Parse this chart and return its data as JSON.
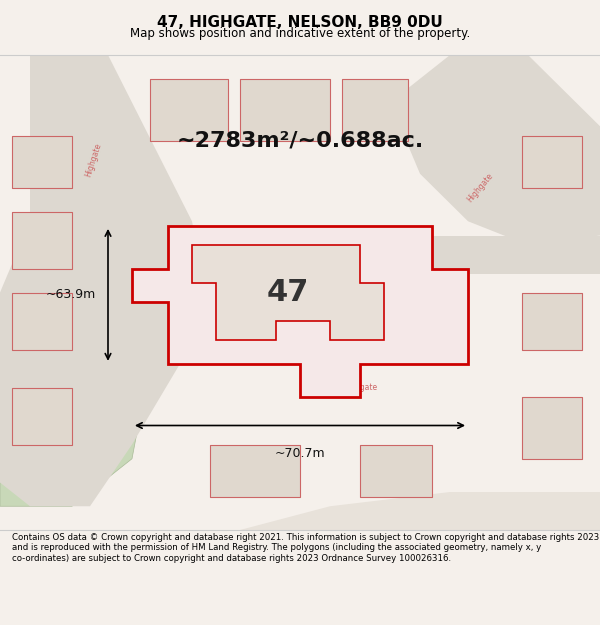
{
  "title": "47, HIGHGATE, NELSON, BB9 0DU",
  "subtitle": "Map shows position and indicative extent of the property.",
  "area_text": "~2783m²/~0.688ac.",
  "label_47": "47",
  "dim_width": "~70.7m",
  "dim_height": "~63.9m",
  "footer": "Contains OS data © Crown copyright and database right 2021. This information is subject to Crown copyright and database rights 2023 and is reproduced with the permission of HM Land Registry. The polygons (including the associated geometry, namely x, y co-ordinates) are subject to Crown copyright and database rights 2023 Ordnance Survey 100026316.",
  "bg_color": "#f5f0eb",
  "map_bg": "#f0ece6",
  "road_color": "#ffffff",
  "building_color": "#e8e0d8",
  "highlight_fill": "#f5e8e8",
  "highlight_stroke": "#cc0000",
  "street_label_color": "#cc4444",
  "footer_bg": "#ffffff",
  "title_area_bg": "#ffffff"
}
